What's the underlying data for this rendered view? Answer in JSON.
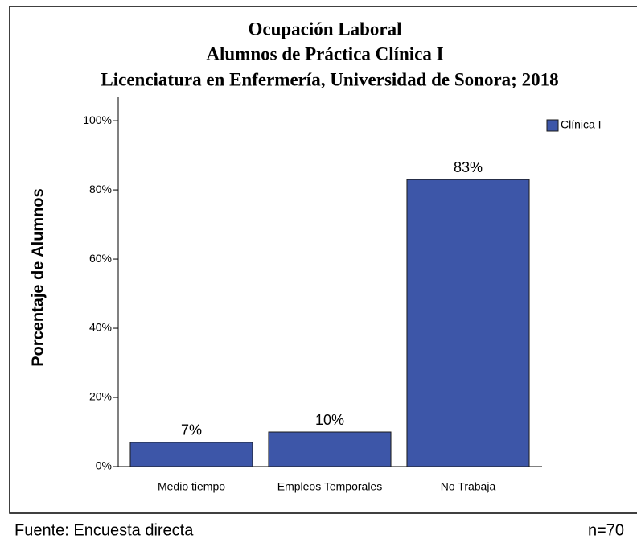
{
  "chart_data": {
    "type": "bar",
    "title": [
      "Ocupación Laboral",
      "Alumnos de Práctica Clínica I",
      "Licenciatura en Enfermería, Universidad de Sonora; 2018"
    ],
    "y_label": "Porcentaje de Alumnos",
    "categories": [
      "Medio tiempo",
      "Empleos Temporales",
      "No Trabaja"
    ],
    "series": [
      {
        "name": "Clínica I",
        "color": "#3d56a8",
        "values": [
          7,
          10,
          83
        ],
        "value_labels": [
          "7%",
          "10%",
          "83%"
        ]
      }
    ],
    "ylim": [
      0,
      107
    ],
    "yticks": [
      {
        "value": 0,
        "label": "0%"
      },
      {
        "value": 20,
        "label": "20%"
      },
      {
        "value": 40,
        "label": "40%"
      },
      {
        "value": 60,
        "label": "60%"
      },
      {
        "value": 80,
        "label": "80%"
      },
      {
        "value": 100,
        "label": "100%"
      }
    ],
    "legend": "top-right",
    "source": "Fuente: Encuesta directa",
    "n": "n=70"
  }
}
